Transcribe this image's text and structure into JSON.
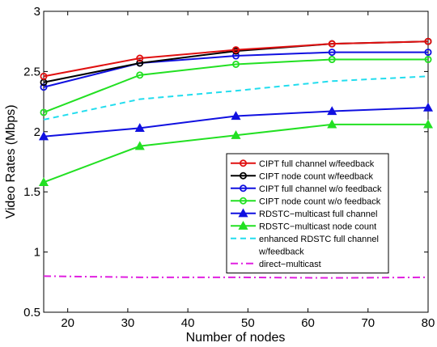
{
  "chart_data": {
    "type": "line",
    "xlabel": "Number of nodes",
    "ylabel": "Video Rates (Mbps)",
    "xlim": [
      16,
      80
    ],
    "ylim": [
      0.5,
      3
    ],
    "xticks": [
      20,
      30,
      40,
      50,
      60,
      70,
      80
    ],
    "yticks": [
      0.5,
      1,
      1.5,
      2,
      2.5,
      3
    ],
    "xtick_labels": [
      "20",
      "30",
      "40",
      "50",
      "60",
      "70",
      "80"
    ],
    "ytick_labels": [
      "0.5",
      "1",
      "1.5",
      "2",
      "2.5",
      "3"
    ],
    "grid": false,
    "legend_position": "right",
    "series": [
      {
        "name": "CIPT full channel w/feedback",
        "color": "#e01010",
        "marker": "circle",
        "dash": "solid",
        "x": [
          16,
          32,
          48,
          64,
          80
        ],
        "y": [
          2.46,
          2.61,
          2.68,
          2.73,
          2.75
        ]
      },
      {
        "name": "CIPT node count w/feedback",
        "color": "#000000",
        "marker": "circle",
        "dash": "solid",
        "x": [
          16,
          32,
          48,
          64,
          80
        ],
        "y": [
          2.41,
          2.57,
          2.67,
          2.73,
          2.75
        ]
      },
      {
        "name": "CIPT full channel w/o feedback",
        "color": "#1010e0",
        "marker": "circle",
        "dash": "solid",
        "x": [
          16,
          32,
          48,
          64,
          80
        ],
        "y": [
          2.37,
          2.57,
          2.63,
          2.66,
          2.66
        ]
      },
      {
        "name": "CIPT node count w/o feedback",
        "color": "#22e022",
        "marker": "circle",
        "dash": "solid",
        "x": [
          16,
          32,
          48,
          64,
          80
        ],
        "y": [
          2.16,
          2.47,
          2.56,
          2.6,
          2.6
        ]
      },
      {
        "name": "RDSTC−multicast full channel",
        "color": "#1010e0",
        "marker": "triangle",
        "dash": "solid",
        "x": [
          16,
          32,
          48,
          64,
          80
        ],
        "y": [
          1.96,
          2.03,
          2.13,
          2.17,
          2.2
        ]
      },
      {
        "name": "RDSTC−multicast node count",
        "color": "#22e022",
        "marker": "triangle",
        "dash": "solid",
        "x": [
          16,
          32,
          48,
          64,
          80
        ],
        "y": [
          1.58,
          1.88,
          1.97,
          2.06,
          2.06
        ]
      },
      {
        "name": "enhanced RDSTC full channel w/feedback",
        "legend_lines": [
          "enhanced RDSTC full channel",
          "w/feedback"
        ],
        "color": "#22ddee",
        "marker": "none",
        "dash": "dashed",
        "x": [
          16,
          32,
          48,
          64,
          80
        ],
        "y": [
          2.1,
          2.27,
          2.34,
          2.42,
          2.46
        ]
      },
      {
        "name": "direct−multicast",
        "color": "#e020e0",
        "marker": "none",
        "dash": "dashdot",
        "x": [
          16,
          32,
          48,
          64,
          80
        ],
        "y": [
          0.8,
          0.79,
          0.79,
          0.785,
          0.79
        ]
      }
    ]
  }
}
